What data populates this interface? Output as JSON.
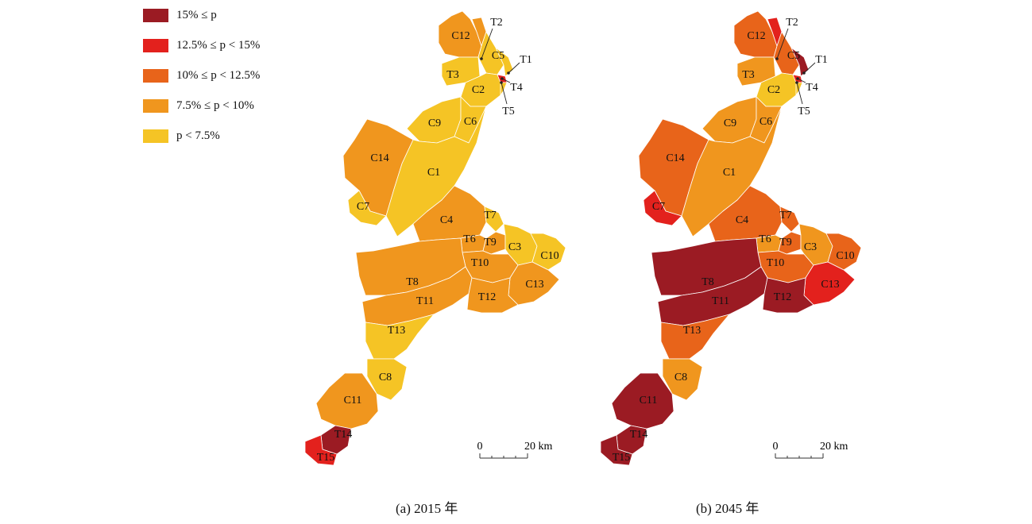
{
  "colors": {
    "c1": "#9b1b23",
    "c2": "#e3211d",
    "c3": "#e8641a",
    "c4": "#f0961e",
    "c5": "#f5c425",
    "border": "#ffffff",
    "text": "#111111"
  },
  "legend": [
    {
      "label": "15% ≤ p",
      "color_key": "c1"
    },
    {
      "label": "12.5% ≤ p < 15%",
      "color_key": "c2"
    },
    {
      "label": "10% ≤ p < 12.5%",
      "color_key": "c3"
    },
    {
      "label": "7.5% ≤ p < 10%",
      "color_key": "c4"
    },
    {
      "label": "p < 7.5%",
      "color_key": "c5"
    }
  ],
  "maps": [
    {
      "caption": "(a) 2015 年",
      "scale": {
        "zero": "0",
        "dist": "20 km"
      },
      "regions": {
        "C12": "c4",
        "T2": "c4",
        "C5": "c5",
        "T1": "c5",
        "T3": "c5",
        "C2": "c5",
        "T4": "c2",
        "T5": "c5",
        "C9": "c5",
        "C6": "c5",
        "C14": "c4",
        "C1": "c5",
        "C7": "c5",
        "C4": "c4",
        "T7": "c5",
        "T6": "c4",
        "T9": "c4",
        "C3": "c5",
        "C10": "c5",
        "T10": "c4",
        "T8": "c4",
        "C13": "c4",
        "T11": "c4",
        "T12": "c4",
        "T13": "c5",
        "C8": "c5",
        "C11": "c4",
        "T14": "c1",
        "T15": "c2"
      }
    },
    {
      "caption": "(b) 2045 年",
      "scale": {
        "zero": "0",
        "dist": "20 km"
      },
      "regions": {
        "C12": "c3",
        "T2": "c2",
        "C5": "c3",
        "T1": "c1",
        "T3": "c4",
        "C2": "c5",
        "T4": "c2",
        "T5": "c5",
        "C9": "c4",
        "C6": "c4",
        "C14": "c3",
        "C1": "c4",
        "C7": "c2",
        "C4": "c3",
        "T7": "c3",
        "T6": "c4",
        "T9": "c3",
        "C3": "c4",
        "C10": "c3",
        "T10": "c3",
        "T8": "c1",
        "C13": "c2",
        "T11": "c1",
        "T12": "c1",
        "T13": "c3",
        "C8": "c4",
        "C11": "c1",
        "T14": "c1",
        "T15": "c1"
      }
    }
  ]
}
